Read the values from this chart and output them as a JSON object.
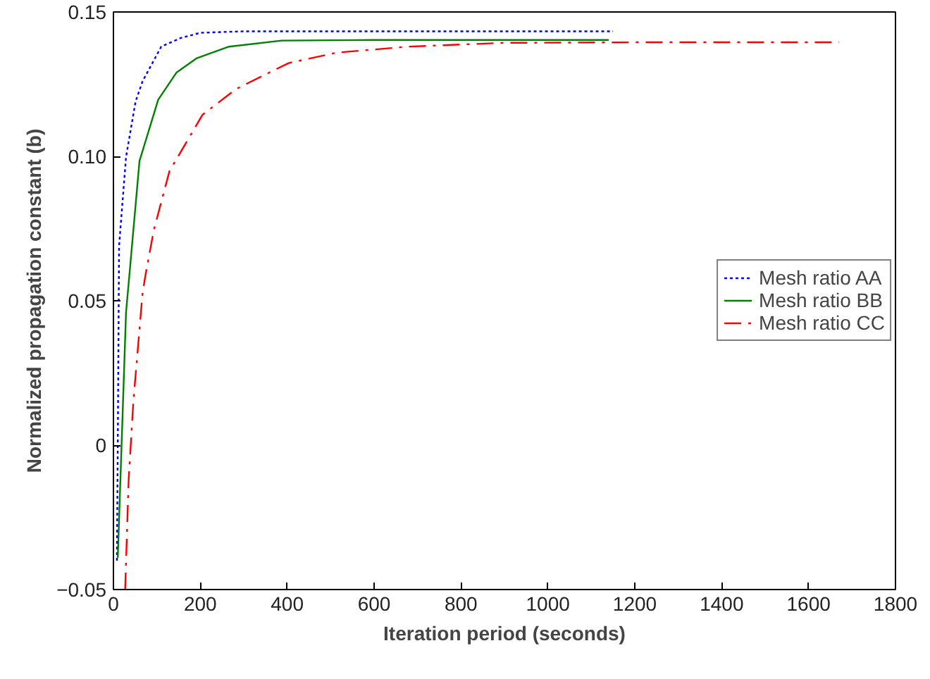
{
  "chart_data": {
    "type": "line",
    "xlabel": "Iteration period (seconds)",
    "ylabel": "Normalized propagation constant (b)",
    "xlim": [
      0,
      1800
    ],
    "ylim": [
      -0.05,
      0.15
    ],
    "xticks": [
      0,
      200,
      400,
      600,
      800,
      1000,
      1200,
      1400,
      1600,
      1800
    ],
    "yticks": [
      {
        "value": -0.05,
        "label": "−0.05"
      },
      0,
      0.05,
      {
        "value": 0.1,
        "label": "0.10"
      },
      0.15
    ],
    "grid": false,
    "legend": "right",
    "marker": "none",
    "series": [
      {
        "name": "Mesh ratio AA",
        "color": "#0000ff",
        "line_style": "dotted",
        "x": [
          8,
          10,
          13,
          29,
          51,
          67,
          110,
          155,
          200,
          300,
          500,
          800,
          1150
        ],
        "values": [
          -0.04,
          0.0,
          0.069,
          0.0998,
          0.119,
          0.126,
          0.138,
          0.141,
          0.1428,
          0.1433,
          0.1433,
          0.1433,
          0.1433
        ]
      },
      {
        "name": "Mesh ratio BB",
        "color": "#008000",
        "line_style": "solid",
        "x": [
          10,
          29,
          35,
          60,
          103,
          145,
          192,
          266,
          387,
          600,
          900,
          1140
        ],
        "values": [
          -0.039,
          0.046,
          0.056,
          0.0984,
          0.1196,
          0.129,
          0.134,
          0.138,
          0.1401,
          0.1403,
          0.1403,
          0.1403
        ]
      },
      {
        "name": "Mesh ratio CC",
        "color": "#ff0000",
        "line_style": "dashdot",
        "x": [
          27,
          35,
          46,
          67,
          74,
          93,
          129,
          205,
          282,
          403,
          513,
          678,
          897,
          1200,
          1670
        ],
        "values": [
          -0.05,
          -0.012,
          0.0154,
          0.0526,
          0.0591,
          0.0745,
          0.0949,
          0.1144,
          0.1233,
          0.1323,
          0.1359,
          0.138,
          0.1393,
          0.1395,
          0.1395
        ]
      }
    ]
  }
}
